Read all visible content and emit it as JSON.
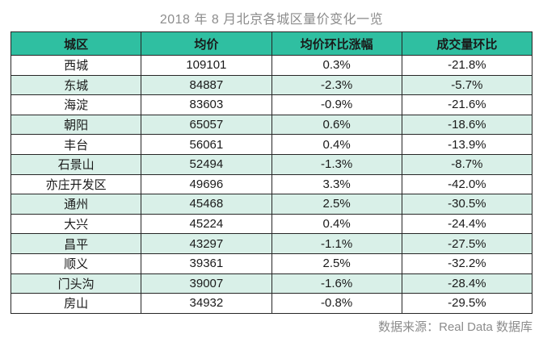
{
  "chart_data": {
    "type": "table",
    "title": "2018 年 8 月北京各城区量价变化一览",
    "columns": [
      "城区",
      "均价",
      "均价环比涨幅",
      "成交量环比"
    ],
    "rows": [
      [
        "西城",
        "109101",
        "0.3%",
        "-21.8%"
      ],
      [
        "东城",
        "84887",
        "-2.3%",
        "-5.7%"
      ],
      [
        "海淀",
        "83603",
        "-0.9%",
        "-21.6%"
      ],
      [
        "朝阳",
        "65057",
        "0.6%",
        "-18.6%"
      ],
      [
        "丰台",
        "56061",
        "0.4%",
        "-13.9%"
      ],
      [
        "石景山",
        "52494",
        "-1.3%",
        "-8.7%"
      ],
      [
        "亦庄开发区",
        "49696",
        "3.3%",
        "-42.0%"
      ],
      [
        "通州",
        "45468",
        "2.5%",
        "-30.5%"
      ],
      [
        "大兴",
        "45224",
        "0.4%",
        "-24.4%"
      ],
      [
        "昌平",
        "43297",
        "-1.1%",
        "-27.5%"
      ],
      [
        "顺义",
        "39361",
        "2.5%",
        "-32.2%"
      ],
      [
        "门头沟",
        "39007",
        "-1.6%",
        "-28.4%"
      ],
      [
        "房山",
        "34932",
        "-0.8%",
        "-29.5%"
      ]
    ],
    "source_note": "数据来源：Real Data 数据库",
    "layout": {
      "legend": "none",
      "grid": "full-borders",
      "striped_rows": true
    }
  },
  "colors": {
    "header_bg": "#2FBFA1",
    "row_alt_bg": "#D9F0E8",
    "border": "#262626",
    "text": "#1A1A1A",
    "muted_text": "#8C8C8C"
  }
}
